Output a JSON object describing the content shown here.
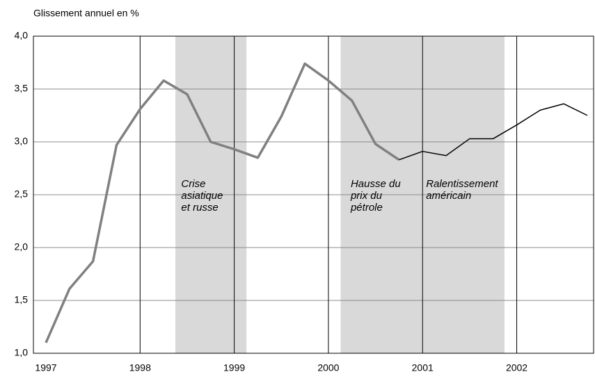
{
  "chart_data": {
    "type": "line",
    "y_label": "Glissement  annuel en %",
    "x": [
      1997,
      1997.25,
      1997.5,
      1997.75,
      1998,
      1998.25,
      1998.5,
      1998.75,
      1999,
      1999.25,
      1999.5,
      1999.75,
      2000,
      2000.25,
      2000.5,
      2000.75,
      2001,
      2001.25,
      2001.5,
      2001.75,
      2002,
      2002.25,
      2002.5,
      2002.75
    ],
    "series": [
      {
        "color": "#808080",
        "width": 3.5,
        "values": [
          1.1,
          1.61,
          1.87,
          2.97,
          3.31,
          3.58,
          3.45,
          3.0,
          2.93,
          2.85,
          3.24,
          3.74,
          3.58,
          3.39,
          2.98,
          2.83,
          null,
          null,
          null,
          null,
          null,
          null,
          null,
          null
        ]
      },
      {
        "color": "#000000",
        "width": 1.5,
        "values": [
          null,
          null,
          null,
          null,
          null,
          null,
          null,
          null,
          null,
          null,
          null,
          null,
          null,
          null,
          null,
          2.83,
          2.91,
          2.87,
          3.03,
          3.03,
          3.16,
          3.3,
          3.36,
          3.25
        ]
      }
    ],
    "xlim": [
      1997,
      2002.75
    ],
    "xticks": [
      1997,
      1998,
      1999,
      2000,
      2001,
      2002
    ],
    "ylim": [
      1.0,
      4.0
    ],
    "yticks": [
      {
        "value": 1.0,
        "label": "1,0"
      },
      {
        "value": 1.5,
        "label": "1,5"
      },
      {
        "value": 2.0,
        "label": "2,0"
      },
      {
        "value": 2.5,
        "label": "2,5"
      },
      {
        "value": 3.0,
        "label": "3,0"
      },
      {
        "value": 3.5,
        "label": "3,5"
      },
      {
        "value": 4.0,
        "label": "4,0"
      }
    ],
    "grid": true,
    "shaded_periods": [
      {
        "from": 1998.375,
        "to": 1999.13,
        "color": "#d9d9d9"
      },
      {
        "from": 2000.13,
        "to": 2001.87,
        "color": "#d9d9d9"
      }
    ],
    "annotations": [
      {
        "x": 1998.4,
        "y": 2.6,
        "lines": [
          "Crise",
          "asiatique",
          "et russe"
        ]
      },
      {
        "x": 2000.2,
        "y": 2.6,
        "lines": [
          "Hausse du",
          "prix du",
          "pétrole"
        ]
      },
      {
        "x": 2001.0,
        "y": 2.6,
        "lines": [
          "Ralentissement",
          "américain"
        ]
      }
    ]
  }
}
